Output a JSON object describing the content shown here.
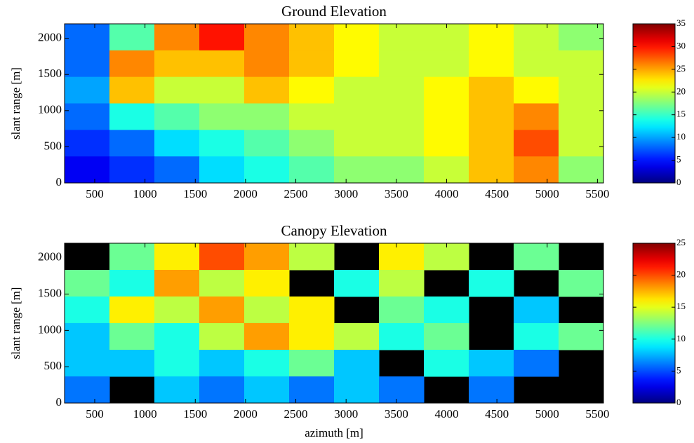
{
  "chart_data": [
    {
      "type": "heatmap",
      "title": "Ground Elevation",
      "ylabel": "slant range [m]",
      "xlim": [
        200,
        5560
      ],
      "ylim": [
        0,
        2200
      ],
      "xticks": [
        500,
        1000,
        1500,
        2000,
        2500,
        3000,
        3500,
        4000,
        4500,
        5000,
        5500
      ],
      "yticks": [
        0,
        500,
        1000,
        1500,
        2000
      ],
      "z": [
        [
          8,
          16,
          26,
          30,
          26,
          24,
          22,
          20,
          20,
          22,
          20,
          18
        ],
        [
          8,
          26,
          24,
          24,
          26,
          24,
          22,
          20,
          20,
          22,
          20,
          20
        ],
        [
          10,
          24,
          20,
          20,
          24,
          22,
          20,
          20,
          22,
          24,
          22,
          20
        ],
        [
          8,
          14,
          16,
          18,
          18,
          20,
          20,
          20,
          22,
          24,
          26,
          20
        ],
        [
          6,
          8,
          12,
          14,
          16,
          18,
          20,
          20,
          22,
          24,
          28,
          20
        ],
        [
          4,
          6,
          8,
          12,
          14,
          16,
          18,
          18,
          20,
          24,
          26,
          18
        ]
      ],
      "clim": [
        0,
        35
      ],
      "cticks": [
        0,
        5,
        10,
        15,
        20,
        25,
        30,
        35
      ],
      "colormap": "jet",
      "nan_color": "#000000"
    },
    {
      "type": "heatmap",
      "title": "Canopy Elevation",
      "xlabel": "azimuth [m]",
      "ylabel": "slant range [m]",
      "xlim": [
        200,
        5560
      ],
      "ylim": [
        0,
        2200
      ],
      "xticks": [
        500,
        1000,
        1500,
        2000,
        2500,
        3000,
        3500,
        4000,
        4500,
        5000,
        5500
      ],
      "yticks": [
        0,
        500,
        1000,
        1500,
        2000
      ],
      "z": [
        [
          null,
          12,
          16,
          20,
          18,
          14,
          null,
          16,
          14,
          null,
          12,
          null
        ],
        [
          12,
          10,
          18,
          14,
          16,
          null,
          10,
          14,
          null,
          10,
          null,
          12
        ],
        [
          10,
          16,
          14,
          18,
          14,
          16,
          null,
          12,
          10,
          null,
          8,
          null
        ],
        [
          8,
          12,
          10,
          14,
          18,
          16,
          14,
          10,
          12,
          null,
          10,
          12
        ],
        [
          8,
          8,
          10,
          8,
          10,
          12,
          8,
          null,
          10,
          8,
          6,
          null
        ],
        [
          6,
          null,
          8,
          6,
          8,
          6,
          8,
          6,
          null,
          6,
          null,
          null
        ]
      ],
      "clim": [
        0,
        25
      ],
      "cticks": [
        0,
        5,
        10,
        15,
        20,
        25
      ],
      "colormap": "jet",
      "nan_color": "#000000"
    }
  ]
}
